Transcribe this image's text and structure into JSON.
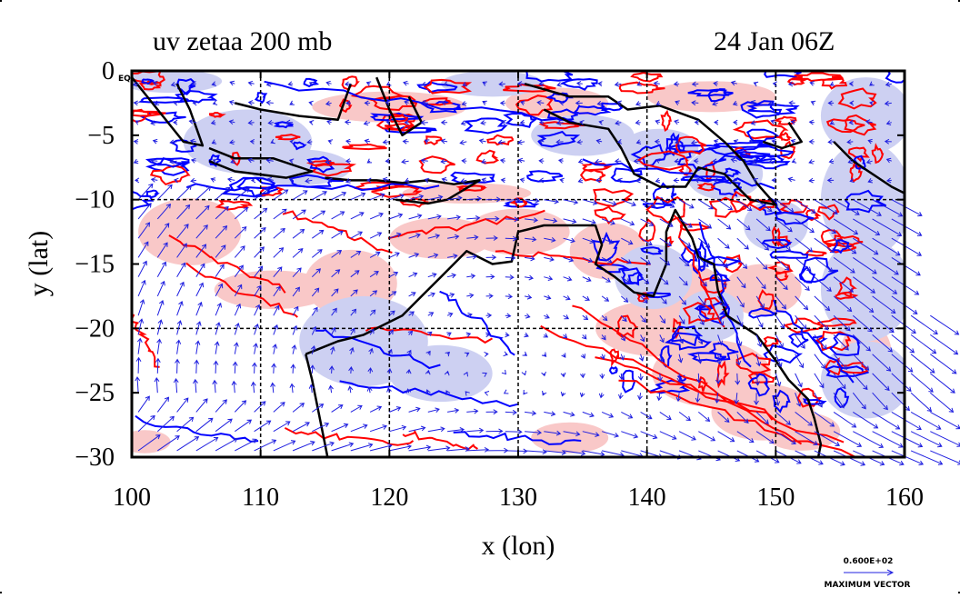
{
  "title": "uv zetaa 200 mb",
  "date_label": "24 Jan 06Z",
  "corner_label": "EQ",
  "xlabel": "x (lon)",
  "ylabel": "y (lat)",
  "vector_key": {
    "value_label": "0.600E+02",
    "caption": "MAXIMUM VECTOR"
  },
  "colors": {
    "positive_contour": "#ff0000",
    "negative_contour": "#0000ff",
    "positive_fill": "#f9c8c8",
    "negative_fill": "#cdd0f2",
    "vector": "#2020e0",
    "coast": "#000000"
  },
  "chart_data": {
    "type": "map",
    "title": "uv zetaa 200 mb",
    "date": "24 Jan 06Z",
    "xlabel": "x (lon)",
    "ylabel": "y (lat)",
    "xlim": [
      100,
      160
    ],
    "ylim": [
      -30,
      0
    ],
    "x_ticks": [
      100,
      110,
      120,
      130,
      140,
      150,
      160
    ],
    "x_tick_labels": [
      "100",
      "110",
      "120",
      "130",
      "140",
      "150",
      "160"
    ],
    "y_ticks": [
      0,
      -5,
      -10,
      -15,
      -20,
      -25,
      -30
    ],
    "y_tick_labels": [
      "0",
      "−5",
      "−10",
      "−15",
      "−20",
      "−25",
      "−30"
    ],
    "gridlines_x": [
      110,
      120,
      130,
      140,
      150
    ],
    "gridlines_y": [
      -10,
      -20
    ],
    "grid": true,
    "series": [
      {
        "name": "positive",
        "color": "#ff0000"
      },
      {
        "name": "negative",
        "color": "#0000ff"
      }
    ]
  }
}
